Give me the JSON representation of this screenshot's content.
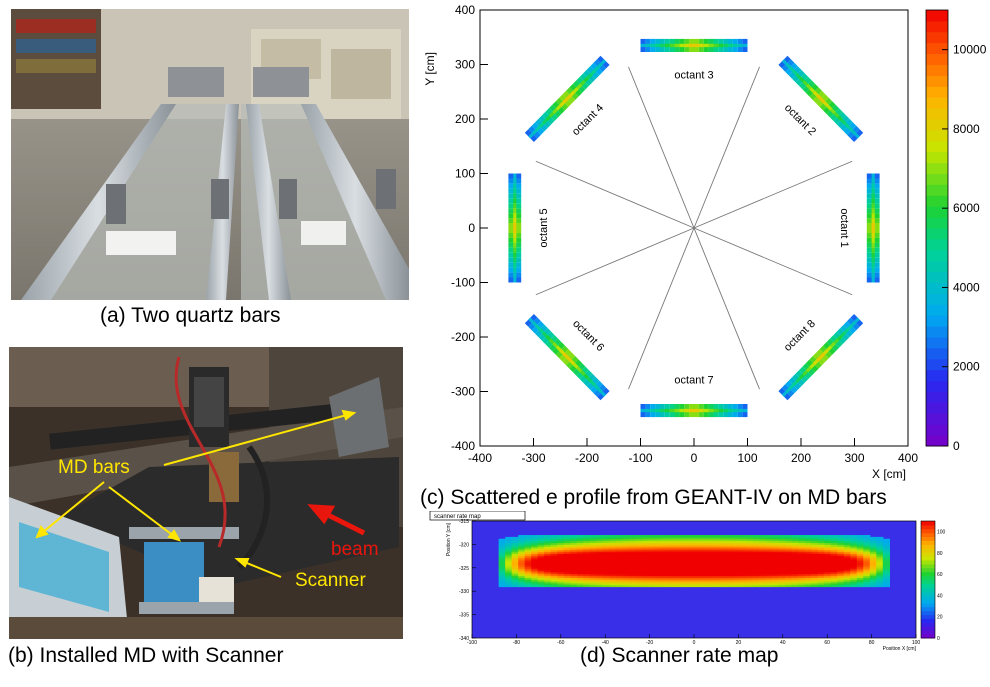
{
  "panels": {
    "a": {
      "caption": "(a) Two quartz bars"
    },
    "b": {
      "caption": "(b) Installed MD with Scanner",
      "annotations": {
        "md_bars": "MD bars",
        "beam": "beam",
        "scanner": "Scanner"
      }
    },
    "c": {
      "caption": "(c) Scattered e profile from GEANT-IV  on MD bars"
    },
    "d": {
      "caption": "(d) Scanner rate map"
    }
  },
  "chart_data": [
    {
      "type": "heatmap",
      "panel": "c",
      "xlabel": "X [cm]",
      "ylabel": "Y [cm]",
      "xlim": [
        -400,
        400
      ],
      "ylim": [
        -400,
        400
      ],
      "x_ticks": [
        -400,
        -300,
        -200,
        -100,
        0,
        100,
        200,
        300,
        400
      ],
      "y_ticks": [
        -400,
        -300,
        -200,
        -100,
        0,
        100,
        200,
        300,
        400
      ],
      "colorbar": {
        "min": 0,
        "max": 11000,
        "ticks": [
          0,
          2000,
          4000,
          6000,
          8000,
          10000
        ]
      },
      "bars": [
        {
          "label": "octant 1",
          "center": [
            335,
            0
          ],
          "angle": 0
        },
        {
          "label": "octant 2",
          "center": [
            237,
            237
          ],
          "angle": 45
        },
        {
          "label": "octant 3",
          "center": [
            0,
            335
          ],
          "angle": 90
        },
        {
          "label": "octant 4",
          "center": [
            -237,
            237
          ],
          "angle": 135
        },
        {
          "label": "octant 5",
          "center": [
            -335,
            0
          ],
          "angle": 180
        },
        {
          "label": "octant 6",
          "center": [
            -237,
            -237
          ],
          "angle": 225
        },
        {
          "label": "octant 7",
          "center": [
            0,
            -335
          ],
          "angle": 270
        },
        {
          "label": "octant 8",
          "center": [
            237,
            -237
          ],
          "angle": 315
        }
      ],
      "bar_half_length_cm": 100
    },
    {
      "type": "heatmap",
      "panel": "d",
      "title": "scanner rate map",
      "xlabel": "Position X [cm]",
      "ylabel": "Position Y [cm]",
      "xlim": [
        -100,
        100
      ],
      "ylim": [
        -340,
        -315
      ],
      "x_ticks": [
        -100,
        -80,
        -60,
        -40,
        -20,
        0,
        20,
        40,
        60,
        80,
        100
      ],
      "y_ticks": [
        -340,
        -335,
        -330,
        -325,
        -320,
        -315
      ],
      "colorbar": {
        "min": 0,
        "max": 110,
        "ticks": [
          0,
          20,
          40,
          60,
          80,
          100
        ]
      },
      "band": {
        "x_range": [
          -88,
          88
        ],
        "y_range": [
          -329,
          -318
        ],
        "peak_y": -324,
        "peak_value": 100
      }
    }
  ],
  "colors": {
    "photo_a_floor": "#8e8b84",
    "photo_b_bg": "#3b3129",
    "annotation_yellow": "#ffe600",
    "beam_red": "#e8160c"
  }
}
